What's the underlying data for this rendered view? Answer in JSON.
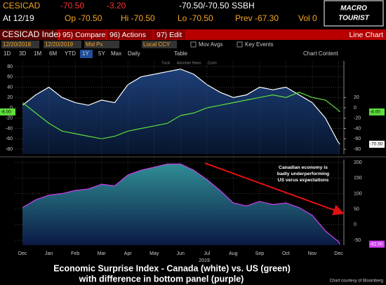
{
  "header": {
    "ticker": "CESICAD",
    "last": "-70.50",
    "change": "-3.20",
    "bid_ask": "-70.50/-70.50",
    "source": "SSBH",
    "at": "At 12/19",
    "open": "Op -70.50",
    "high": "Hi -70.50",
    "low": "Lo -70.50",
    "prev": "Prev -67.30",
    "volume": "Vol 0",
    "logo": [
      "MACRO",
      "TOURIST"
    ]
  },
  "toolbar": {
    "security": "CESICAD Index",
    "buttons": [
      "95) Compare",
      "96) Actions",
      "97) Edit"
    ],
    "view": "Line Chart",
    "start_date": "12/20/2018",
    "end_date": "12/20/2019",
    "price": "Mid Px",
    "currency": "Local CCY",
    "options": [
      "Mov Avgs",
      "Key Events"
    ],
    "ranges": [
      "1D",
      "3D",
      "1M",
      "6M",
      "YTD",
      "1Y",
      "5Y",
      "Max"
    ],
    "period": "Daily",
    "table": "Table",
    "content": "Chart Content",
    "icons": [
      "Track",
      "Annotate",
      "News",
      "Zoom"
    ]
  },
  "chart_data": [
    {
      "type": "line",
      "xlim": [
        -0.27,
        12.2
      ],
      "ylim": [
        -89.5,
        90.8
      ],
      "yticks": [
        80,
        60,
        40,
        20,
        0,
        -20,
        -40,
        -60,
        -80
      ],
      "y2lim": [
        -89.5,
        90.8
      ],
      "y2ticks": [
        20,
        0,
        -20,
        -40,
        -60,
        -80
      ],
      "grid": true,
      "x": [
        0,
        0.5,
        1,
        1.5,
        2,
        2.5,
        3,
        3.5,
        4,
        4.5,
        5,
        5.5,
        6,
        6.5,
        7,
        7.5,
        8,
        8.5,
        9,
        9.5,
        10,
        10.5,
        11,
        11.5,
        12,
        12.05
      ],
      "series": [
        {
          "name": "Canada",
          "color": "#ffffff",
          "last_label": "-70.50",
          "values": [
            5,
            25,
            40,
            20,
            10,
            5,
            15,
            10,
            45,
            60,
            65,
            70,
            75,
            65,
            45,
            30,
            20,
            25,
            40,
            35,
            40,
            25,
            10,
            -20,
            -68,
            -70.5
          ]
        },
        {
          "name": "US",
          "color": "#5ee03c",
          "axis": "y2",
          "last_label": "-8.00",
          "values": [
            10,
            -10,
            -30,
            -45,
            -50,
            -55,
            -60,
            -55,
            -45,
            -40,
            -35,
            -30,
            -15,
            -10,
            0,
            5,
            10,
            15,
            20,
            25,
            20,
            30,
            20,
            15,
            -5,
            -8
          ]
        }
      ]
    },
    {
      "type": "area",
      "xlim": [
        -0.27,
        12.2
      ],
      "ylim": [
        -65.5,
        209
      ],
      "yticks": [
        200,
        150,
        100,
        50,
        0,
        -50
      ],
      "grid": true,
      "xticks": [
        {
          "value": 0,
          "label": "Dec"
        },
        {
          "value": 1,
          "label": "Jan"
        },
        {
          "value": 2,
          "label": "Feb"
        },
        {
          "value": 3,
          "label": "Mar"
        },
        {
          "value": 4,
          "label": "Apr"
        },
        {
          "value": 5,
          "label": "May"
        },
        {
          "value": 6,
          "label": "Jun"
        },
        {
          "value": 7,
          "label": "Jul"
        },
        {
          "value": 8,
          "label": "Aug"
        },
        {
          "value": 9,
          "label": "Sep"
        },
        {
          "value": 10,
          "label": "Oct"
        },
        {
          "value": 11,
          "label": "Nov"
        },
        {
          "value": 12,
          "label": "Dec"
        }
      ],
      "xlabel": "2019",
      "x": [
        0,
        0.5,
        1,
        1.5,
        2,
        2.5,
        3,
        3.5,
        4,
        4.5,
        5,
        5.5,
        6,
        6.5,
        7,
        7.5,
        8,
        8.5,
        9,
        9.5,
        10,
        10.5,
        11,
        11.5,
        12,
        12.05
      ],
      "series": [
        {
          "name": "Difference",
          "color": "#d040f0",
          "last_label": "-62.50",
          "values": [
            55,
            80,
            95,
            100,
            110,
            115,
            130,
            125,
            160,
            175,
            185,
            195,
            195,
            175,
            145,
            110,
            70,
            60,
            75,
            65,
            70,
            55,
            30,
            -20,
            -55,
            -62.5
          ]
        }
      ],
      "annotation": [
        "Canadian economy is",
        "badly underperforming",
        "US verus expectations"
      ]
    }
  ],
  "caption": [
    "Economic Surprise Index - Canada (white) vs. US (green)",
    "with difference in bottom panel (purple)"
  ],
  "credit": "Chart courtesy of Bloomberg"
}
